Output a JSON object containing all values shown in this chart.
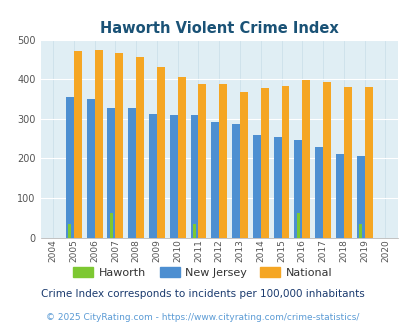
{
  "title": "Haworth Violent Crime Index",
  "years": [
    2004,
    2005,
    2006,
    2007,
    2008,
    2009,
    2010,
    2011,
    2012,
    2013,
    2014,
    2015,
    2016,
    2017,
    2018,
    2019,
    2020
  ],
  "haworth": [
    0,
    35,
    0,
    62,
    0,
    0,
    0,
    35,
    0,
    0,
    0,
    0,
    62,
    0,
    0,
    35,
    0
  ],
  "new_jersey": [
    0,
    355,
    350,
    328,
    328,
    312,
    310,
    310,
    292,
    288,
    260,
    255,
    247,
    230,
    210,
    207,
    0
  ],
  "national": [
    0,
    470,
    473,
    467,
    455,
    432,
    406,
    388,
    388,
    367,
    378,
    384,
    398,
    394,
    381,
    380,
    0
  ],
  "haworth_color": "#7dc832",
  "nj_color": "#4d8fd1",
  "national_color": "#f5a623",
  "bg_color": "#e0eef4",
  "ylim": [
    0,
    500
  ],
  "yticks": [
    0,
    100,
    200,
    300,
    400,
    500
  ],
  "subtitle": "Crime Index corresponds to incidents per 100,000 inhabitants",
  "footer": "© 2025 CityRating.com - https://www.cityrating.com/crime-statistics/",
  "subtitle_color": "#1a3a6e",
  "footer_color": "#5b9bd5",
  "title_color": "#1a5276"
}
